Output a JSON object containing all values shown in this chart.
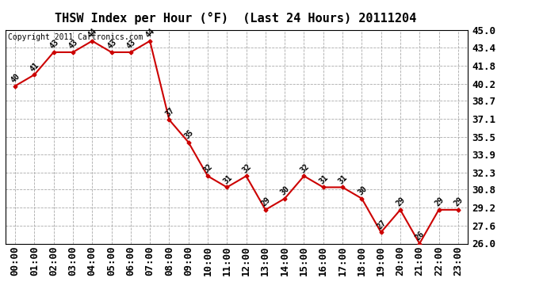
{
  "title": "THSW Index per Hour (°F)  (Last 24 Hours) 20111204",
  "copyright_text": "Copyright 2011 Cartronics.com",
  "hours": [
    "00:00",
    "01:00",
    "02:00",
    "03:00",
    "04:00",
    "05:00",
    "06:00",
    "07:00",
    "08:00",
    "09:00",
    "10:00",
    "11:00",
    "12:00",
    "13:00",
    "14:00",
    "15:00",
    "16:00",
    "17:00",
    "18:00",
    "19:00",
    "20:00",
    "21:00",
    "22:00",
    "23:00"
  ],
  "values": [
    40,
    41,
    43,
    43,
    44,
    43,
    43,
    44,
    37,
    35,
    32,
    31,
    32,
    29,
    30,
    32,
    31,
    31,
    30,
    27,
    29,
    26,
    29,
    29
  ],
  "line_color": "#cc0000",
  "bg_color": "#ffffff",
  "grid_color": "#aaaaaa",
  "ylim_min": 26.0,
  "ylim_max": 45.0,
  "yticks": [
    26.0,
    27.6,
    29.2,
    30.8,
    32.3,
    33.9,
    35.5,
    37.1,
    38.7,
    40.2,
    41.8,
    43.4,
    45.0
  ],
  "title_fontsize": 11,
  "label_fontsize": 7,
  "tick_fontsize": 9,
  "copyright_fontsize": 7
}
